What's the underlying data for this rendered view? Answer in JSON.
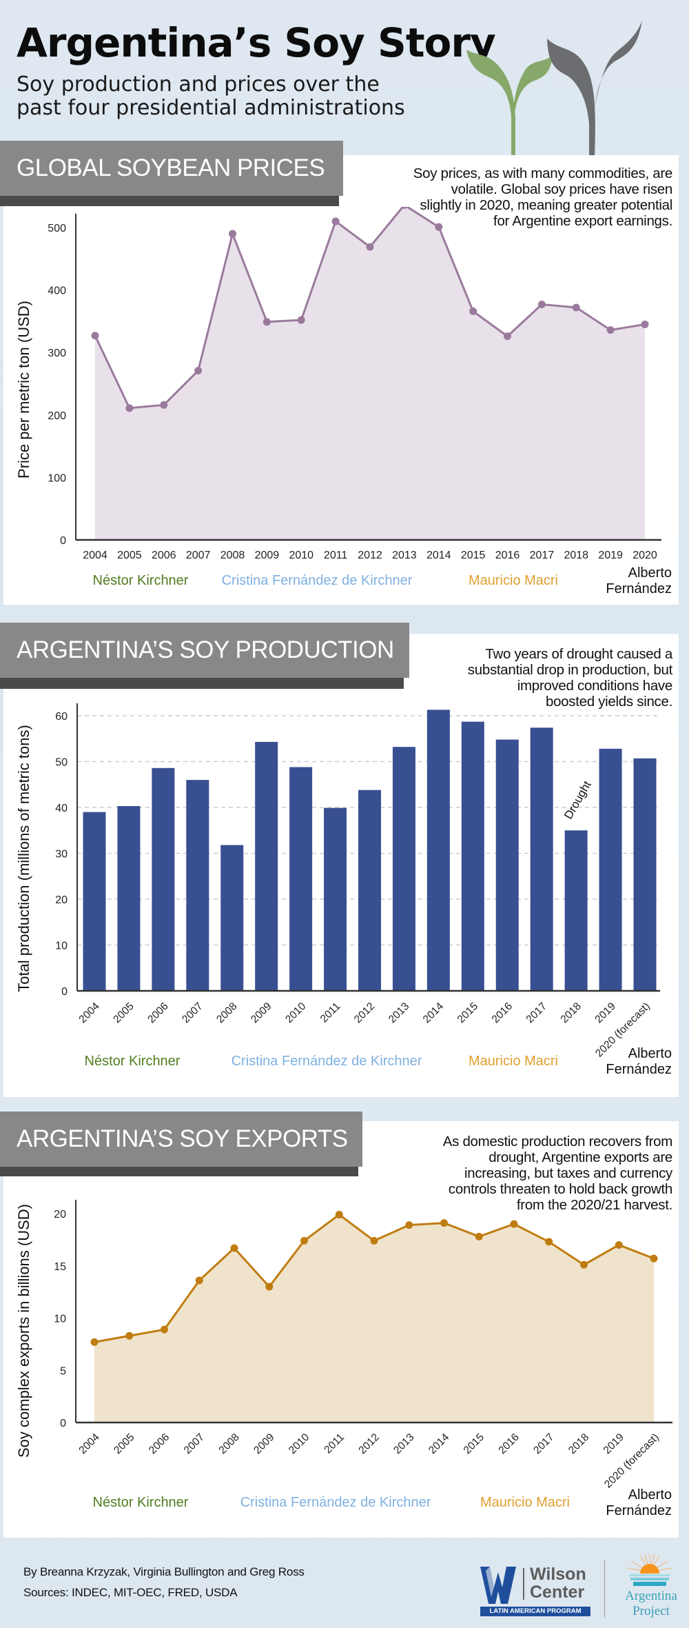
{
  "header": {
    "title": "Argentina’s Soy Story",
    "subtitle_line1": "Soy production and prices over the",
    "subtitle_line2": "past four presidential administrations"
  },
  "colors": {
    "kirchner_nestor": "#4f7e1f",
    "kirchner_cristina": "#7fb0e0",
    "macri": "#e0a030",
    "fernandez": "#111111",
    "price_line": "#9a7a9c",
    "price_fill": "#e9e1ea",
    "production_bar": "#384f91",
    "exports_line": "#c07c10",
    "exports_fill": "#efe3cc",
    "banner_bg": "#888888",
    "banner_shadow": "#4a4a4a"
  },
  "administrations": [
    {
      "name": "Néstor Kirchner",
      "color_key": "kirchner_nestor"
    },
    {
      "name": "Cristina Fernández de Kirchner",
      "color_key": "kirchner_cristina"
    },
    {
      "name": "Mauricio Macri",
      "color_key": "macri"
    },
    {
      "name_line1": "Alberto",
      "name_line2": "Fernández",
      "color_key": "fernandez"
    }
  ],
  "sections": {
    "prices": {
      "banner": "GLOBAL SOYBEAN PRICES",
      "blurb": [
        "Soy prices, as with many commodities, are",
        "volatile. Global soy prices have risen",
        "slightly in 2020, meaning greater potential",
        "for Argentine export earnings."
      ]
    },
    "production": {
      "banner": "ARGENTINA’S SOY PRODUCTION",
      "blurb": [
        "Two years of drought caused a",
        "substantial drop in production, but",
        "improved conditions have",
        "boosted yields since."
      ]
    },
    "exports": {
      "banner": "ARGENTINA’S SOY EXPORTS",
      "blurb": [
        "As domestic production recovers from",
        "drought, Argentine exports are",
        "increasing, but taxes and currency",
        "controls threaten to hold back growth",
        "from the 2020/21 harvest."
      ]
    }
  },
  "chart_data": [
    {
      "id": "prices",
      "type": "area",
      "title": "GLOBAL SOYBEAN PRICES",
      "xlabel": "",
      "ylabel": "Price per metric ton (USD)",
      "categories": [
        "2004",
        "2005",
        "2006",
        "2007",
        "2008",
        "2009",
        "2010",
        "2011",
        "2012",
        "2013",
        "2014",
        "2015",
        "2016",
        "2017",
        "2018",
        "2019",
        "2020"
      ],
      "values": [
        327,
        211,
        216,
        271,
        490,
        349,
        352,
        510,
        469,
        536,
        501,
        366,
        326,
        377,
        372,
        336,
        345
      ],
      "yticks": [
        0,
        100,
        200,
        300,
        400,
        500
      ],
      "ylim": [
        0,
        560
      ],
      "grid": false,
      "markers": true
    },
    {
      "id": "production",
      "type": "bar",
      "title": "ARGENTINA’S SOY PRODUCTION",
      "xlabel": "",
      "ylabel": "Total production (millions of metric tons)",
      "categories": [
        "2004",
        "2005",
        "2006",
        "2007",
        "2008",
        "2009",
        "2010",
        "2011",
        "2012",
        "2013",
        "2014",
        "2015",
        "2016",
        "2017",
        "2018",
        "2019",
        "2020 (forecast)"
      ],
      "values": [
        39.0,
        40.3,
        48.6,
        46.0,
        31.8,
        54.3,
        48.8,
        39.9,
        43.8,
        53.2,
        61.3,
        58.7,
        54.8,
        57.4,
        35.0,
        52.8,
        50.7
      ],
      "yticks": [
        0,
        10,
        20,
        30,
        40,
        50,
        60
      ],
      "ylim": [
        0,
        65
      ],
      "grid": true,
      "annotations": [
        {
          "category": "2018",
          "text": "Drought"
        }
      ]
    },
    {
      "id": "exports",
      "type": "area",
      "title": "ARGENTINA’S SOY EXPORTS",
      "xlabel": "",
      "ylabel": "Soy complex exports in billions  (USD)",
      "categories": [
        "2004",
        "2005",
        "2006",
        "2007",
        "2008",
        "2009",
        "2010",
        "2011",
        "2012",
        "2013",
        "2014",
        "2015",
        "2016",
        "2017",
        "2018",
        "2019",
        "2020 (forecast)"
      ],
      "values": [
        7.7,
        8.3,
        8.9,
        13.6,
        16.7,
        13.0,
        17.4,
        19.9,
        17.4,
        18.9,
        19.1,
        17.8,
        19.0,
        17.3,
        15.1,
        17.0,
        15.7
      ],
      "yticks": [
        0,
        5,
        10,
        15,
        20
      ],
      "ylim": [
        0,
        21
      ],
      "grid": false,
      "markers": true
    }
  ],
  "footer": {
    "byline": "By Breanna Krzyzak, Virginia Bullington and Greg Ross",
    "sources": "Sources: INDEC, MIT-OEC,  FRED, USDA",
    "logo_wilson_line1": "Wilson",
    "logo_wilson_line2": "Center",
    "logo_wilson_program": "LATIN AMERICAN PROGRAM",
    "logo_argentina_line1": "Argentina",
    "logo_argentina_line2": "Project"
  }
}
